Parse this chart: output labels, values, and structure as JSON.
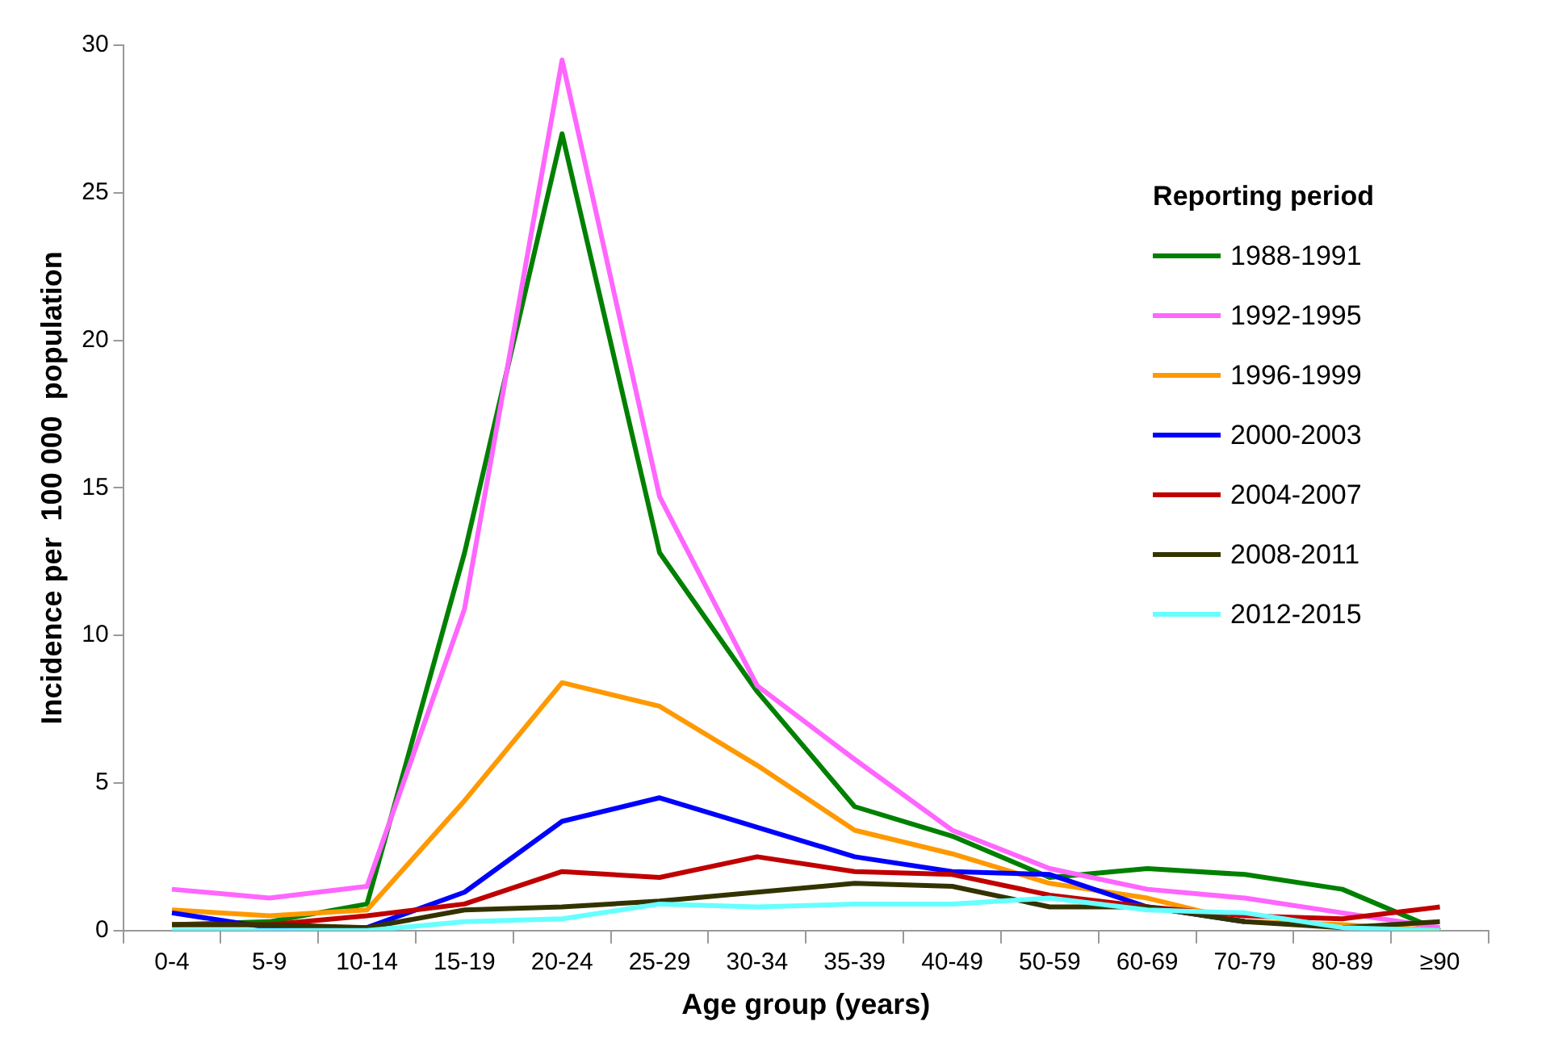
{
  "chart_data": {
    "type": "line",
    "xlabel": "Age group (years)",
    "ylabel": "Incidence per  100 000  population",
    "legend_title": "Reporting period",
    "legend": "top right",
    "grid": false,
    "marker": "none",
    "line_style": "solid",
    "categories": [
      "0-4",
      "5-9",
      "10-14",
      "15-19",
      "20-24",
      "25-29",
      "30-34",
      "35-39",
      "40-49",
      "50-59",
      "60-69",
      "70-79",
      "80-89",
      "≥90"
    ],
    "ylim": [
      0,
      30
    ],
    "yticks": [
      0,
      5,
      10,
      15,
      20,
      25,
      30
    ],
    "series": [
      {
        "name": "1988-1991",
        "color": "#008000",
        "values": [
          0.2,
          0.3,
          0.9,
          12.8,
          27,
          12.8,
          8.1,
          4.2,
          3.2,
          1.8,
          2.1,
          1.9,
          1.4,
          0
        ]
      },
      {
        "name": "1992-1995",
        "color": "#ff66ff",
        "values": [
          1.4,
          1.1,
          1.5,
          10.9,
          29.5,
          14.7,
          8.3,
          5.8,
          3.4,
          2.1,
          1.4,
          1.1,
          0.6,
          0.1
        ]
      },
      {
        "name": "1996-1999",
        "color": "#ff9900",
        "values": [
          0.7,
          0.5,
          0.7,
          4.4,
          8.4,
          7.6,
          5.6,
          3.4,
          2.6,
          1.6,
          1.1,
          0.3,
          0.2,
          0
        ]
      },
      {
        "name": "2000-2003",
        "color": "#0000ff",
        "values": [
          0.6,
          0.1,
          0.1,
          1.3,
          3.7,
          4.5,
          3.5,
          2.5,
          2.0,
          1.9,
          0.8,
          0.3,
          null,
          null
        ]
      },
      {
        "name": "2004-2007",
        "color": "#c00000",
        "values": [
          0.2,
          0.2,
          0.5,
          0.9,
          2.0,
          1.8,
          2.5,
          2.0,
          1.9,
          1.2,
          0.8,
          0.5,
          0.4,
          0.8
        ]
      },
      {
        "name": "2008-2011",
        "color": "#333300",
        "values": [
          0.2,
          0.2,
          0.1,
          0.7,
          0.8,
          1.0,
          1.3,
          1.6,
          1.5,
          0.8,
          0.8,
          0.3,
          0.1,
          0.3
        ]
      },
      {
        "name": "2012-2015",
        "color": "#66ffff",
        "values": [
          0,
          0,
          0,
          0.3,
          0.4,
          0.9,
          0.8,
          0.9,
          0.9,
          1.1,
          0.7,
          0.6,
          0.1,
          0
        ]
      }
    ]
  }
}
